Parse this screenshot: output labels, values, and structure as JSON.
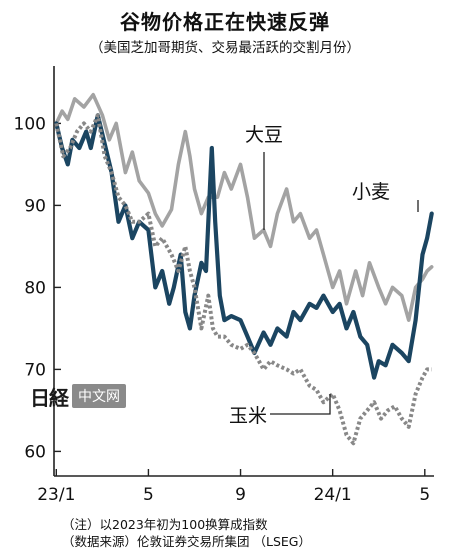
{
  "header": {
    "title": "谷物价格正在快速反弹",
    "subtitle": "（美国芝加哥期货、交易最活跃的交割月份）"
  },
  "notes": {
    "line1": "（注）以2023年初为100换算成指数",
    "line2": "（数据来源）伦敦证券交易所集团 （LSEG）"
  },
  "watermark": {
    "logo": "日経",
    "label": "中文网"
  },
  "chart_data": {
    "type": "line",
    "title": "谷物价格正在快速反弹",
    "subtitle": "（美国芝加哥期货、交易最活跃的交割月份）",
    "xlabel": "",
    "ylabel": "",
    "x_unit": "month index (0 = 2023年1月)",
    "xlim": [
      -0.1,
      16.4
    ],
    "ylim": [
      57,
      107
    ],
    "x_ticks": [
      {
        "x": 0,
        "label": "23/1"
      },
      {
        "x": 4,
        "label": "5"
      },
      {
        "x": 8,
        "label": "9"
      },
      {
        "x": 12,
        "label": "24/1"
      },
      {
        "x": 16,
        "label": "5"
      }
    ],
    "y_ticks": [
      60,
      70,
      80,
      90,
      100
    ],
    "grid": false,
    "legend": "direct labels",
    "series": [
      {
        "name": "大豆",
        "color": "#a3a3a3",
        "style": "solid",
        "label_anchor": {
          "x": 7.7,
          "y": 92
        },
        "points": [
          [
            0,
            100
          ],
          [
            0.25,
            101.5
          ],
          [
            0.5,
            100.5
          ],
          [
            0.8,
            103
          ],
          [
            1.2,
            102
          ],
          [
            1.6,
            103.5
          ],
          [
            2,
            101
          ],
          [
            2.3,
            98
          ],
          [
            2.6,
            100
          ],
          [
            3,
            94
          ],
          [
            3.3,
            96.5
          ],
          [
            3.6,
            93
          ],
          [
            4,
            91.5
          ],
          [
            4.3,
            89
          ],
          [
            4.6,
            87.5
          ],
          [
            5,
            89.5
          ],
          [
            5.3,
            95
          ],
          [
            5.6,
            99
          ],
          [
            5.8,
            96
          ],
          [
            6,
            92
          ],
          [
            6.3,
            89
          ],
          [
            6.6,
            91
          ],
          [
            7,
            91
          ],
          [
            7.3,
            94
          ],
          [
            7.6,
            92
          ],
          [
            8,
            95
          ],
          [
            8.3,
            91
          ],
          [
            8.6,
            86
          ],
          [
            9,
            87
          ],
          [
            9.3,
            85
          ],
          [
            9.6,
            89
          ],
          [
            10,
            92
          ],
          [
            10.3,
            88
          ],
          [
            10.6,
            89
          ],
          [
            11,
            86
          ],
          [
            11.3,
            87
          ],
          [
            11.6,
            84
          ],
          [
            12,
            80
          ],
          [
            12.3,
            82
          ],
          [
            12.6,
            78
          ],
          [
            13,
            82
          ],
          [
            13.3,
            79
          ],
          [
            13.6,
            83
          ],
          [
            14,
            80
          ],
          [
            14.3,
            78
          ],
          [
            14.6,
            80
          ],
          [
            15,
            79
          ],
          [
            15.3,
            76
          ],
          [
            15.6,
            80
          ],
          [
            15.9,
            81
          ],
          [
            16.1,
            82
          ],
          [
            16.3,
            82.5
          ]
        ]
      },
      {
        "name": "小麦",
        "color": "#1b4561",
        "style": "solid",
        "label_anchor": {
          "x": 16.3,
          "y": 89.5
        },
        "points": [
          [
            0,
            100
          ],
          [
            0.25,
            97
          ],
          [
            0.5,
            95
          ],
          [
            0.7,
            98
          ],
          [
            1,
            97
          ],
          [
            1.3,
            99
          ],
          [
            1.5,
            97
          ],
          [
            1.8,
            101
          ],
          [
            2.1,
            97.5
          ],
          [
            2.4,
            94
          ],
          [
            2.7,
            88
          ],
          [
            3,
            90
          ],
          [
            3.3,
            86
          ],
          [
            3.6,
            88
          ],
          [
            4,
            87
          ],
          [
            4.3,
            80
          ],
          [
            4.6,
            82
          ],
          [
            4.9,
            78
          ],
          [
            5.1,
            80
          ],
          [
            5.4,
            84
          ],
          [
            5.6,
            77
          ],
          [
            5.8,
            75
          ],
          [
            6,
            79
          ],
          [
            6.3,
            83
          ],
          [
            6.5,
            82
          ],
          [
            6.75,
            97
          ],
          [
            6.9,
            88
          ],
          [
            7.1,
            79
          ],
          [
            7.3,
            76
          ],
          [
            7.6,
            76.5
          ],
          [
            8,
            76
          ],
          [
            8.3,
            74
          ],
          [
            8.6,
            72
          ],
          [
            9,
            74.5
          ],
          [
            9.3,
            73
          ],
          [
            9.6,
            75
          ],
          [
            10,
            74
          ],
          [
            10.3,
            77
          ],
          [
            10.6,
            76
          ],
          [
            11,
            78
          ],
          [
            11.3,
            77.5
          ],
          [
            11.6,
            79
          ],
          [
            12,
            77
          ],
          [
            12.3,
            78
          ],
          [
            12.6,
            75
          ],
          [
            12.9,
            77
          ],
          [
            13.2,
            74
          ],
          [
            13.5,
            73
          ],
          [
            13.8,
            69
          ],
          [
            14,
            71
          ],
          [
            14.3,
            70.5
          ],
          [
            14.6,
            73
          ],
          [
            15,
            72
          ],
          [
            15.3,
            71
          ],
          [
            15.6,
            76
          ],
          [
            15.9,
            84
          ],
          [
            16.1,
            86
          ],
          [
            16.3,
            89
          ]
        ]
      },
      {
        "name": "玉米",
        "color": "#888888",
        "style": "dotted",
        "label_anchor": {
          "x": 13.2,
          "y": 65.5
        },
        "points": [
          [
            0,
            100
          ],
          [
            0.3,
            96
          ],
          [
            0.6,
            97
          ],
          [
            0.9,
            99
          ],
          [
            1.2,
            100
          ],
          [
            1.5,
            99
          ],
          [
            1.8,
            101
          ],
          [
            2.1,
            96
          ],
          [
            2.4,
            94
          ],
          [
            2.7,
            91
          ],
          [
            3,
            90
          ],
          [
            3.3,
            88
          ],
          [
            3.6,
            88
          ],
          [
            4,
            89
          ],
          [
            4.3,
            85
          ],
          [
            4.6,
            86
          ],
          [
            5,
            84
          ],
          [
            5.3,
            82
          ],
          [
            5.6,
            85
          ],
          [
            5.8,
            82
          ],
          [
            6,
            80
          ],
          [
            6.3,
            75
          ],
          [
            6.6,
            79
          ],
          [
            6.8,
            75
          ],
          [
            7,
            74
          ],
          [
            7.3,
            74
          ],
          [
            7.6,
            73
          ],
          [
            8,
            72.5
          ],
          [
            8.3,
            73
          ],
          [
            8.6,
            72
          ],
          [
            9,
            70
          ],
          [
            9.3,
            71
          ],
          [
            9.6,
            70.5
          ],
          [
            10,
            70
          ],
          [
            10.3,
            69.5
          ],
          [
            10.6,
            70
          ],
          [
            11,
            68
          ],
          [
            11.3,
            67.5
          ],
          [
            11.6,
            66
          ],
          [
            12,
            67
          ],
          [
            12.3,
            65
          ],
          [
            12.6,
            62
          ],
          [
            12.9,
            61
          ],
          [
            13.2,
            64
          ],
          [
            13.5,
            65
          ],
          [
            13.8,
            66
          ],
          [
            14.1,
            64
          ],
          [
            14.4,
            65
          ],
          [
            14.7,
            65.5
          ],
          [
            15,
            64
          ],
          [
            15.3,
            63
          ],
          [
            15.6,
            67
          ],
          [
            15.9,
            69
          ],
          [
            16.1,
            70
          ],
          [
            16.3,
            70
          ]
        ]
      }
    ]
  }
}
